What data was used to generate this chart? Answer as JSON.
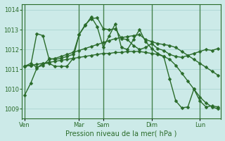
{
  "background_color": "#cceae8",
  "grid_color": "#b0d8d5",
  "line_color": "#2a6b2a",
  "xlabel": "Pression niveau de la mer( hPa )",
  "ylim": [
    1008.5,
    1014.3
  ],
  "yticks": [
    1009,
    1010,
    1011,
    1012,
    1013,
    1014
  ],
  "day_labels": [
    "Ven",
    "Mar",
    "Sam",
    "Dim",
    "Lun"
  ],
  "day_positions": [
    0,
    9,
    13,
    21,
    29
  ],
  "total_points": 33,
  "series": [
    [
      1009.7,
      1010.3,
      1011.05,
      1011.3,
      1011.3,
      1011.15,
      1011.15,
      1011.15,
      1011.55,
      1012.75,
      1013.2,
      1013.65,
      1013.15,
      1012.1,
      1012.7,
      1013.3,
      1012.1,
      1012.0,
      1012.5,
      1013.0,
      1012.4,
      1012.05,
      1011.8,
      1011.65,
      1010.5,
      1009.4,
      1009.05,
      1009.1,
      1010.0,
      1009.4,
      1009.1,
      1009.15,
      1009.1
    ],
    [
      1011.15,
      1011.3,
      1011.1,
      1011.2,
      1011.5,
      1011.55,
      1011.65,
      1011.75,
      1011.85,
      1011.95,
      1012.05,
      1012.15,
      1012.25,
      1012.35,
      1012.45,
      1012.55,
      1012.6,
      1012.65,
      1012.7,
      1012.75,
      1012.5,
      1012.4,
      1012.3,
      1012.25,
      1012.2,
      1012.1,
      1011.9,
      1011.7,
      1011.5,
      1011.3,
      1011.1,
      1010.9,
      1010.7
    ],
    [
      1011.15,
      1011.2,
      1011.25,
      1011.3,
      1011.35,
      1011.4,
      1011.45,
      1011.5,
      1011.55,
      1011.6,
      1011.65,
      1011.7,
      1011.75,
      1011.8,
      1011.8,
      1011.85,
      1011.85,
      1011.9,
      1011.9,
      1011.9,
      1011.85,
      1011.8,
      1011.75,
      1011.65,
      1011.5,
      1011.2,
      1010.8,
      1010.4,
      1010.0,
      1009.6,
      1009.3,
      1009.1,
      1009.0
    ],
    [
      1011.15,
      1011.2,
      1012.8,
      1012.7,
      1011.55,
      1011.5,
      1011.55,
      1011.65,
      1011.75,
      1012.75,
      1013.25,
      1013.55,
      1013.6,
      1013.05,
      1013.0,
      1013.05,
      1012.55,
      1012.5,
      1012.2,
      1012.0,
      1012.1,
      1012.3,
      1012.05,
      1011.95,
      1011.75,
      1011.65,
      1011.6,
      1011.7,
      1011.8,
      1011.9,
      1012.0,
      1011.95,
      1012.05
    ]
  ],
  "marker_size": 2.5,
  "linewidth": 1.0
}
